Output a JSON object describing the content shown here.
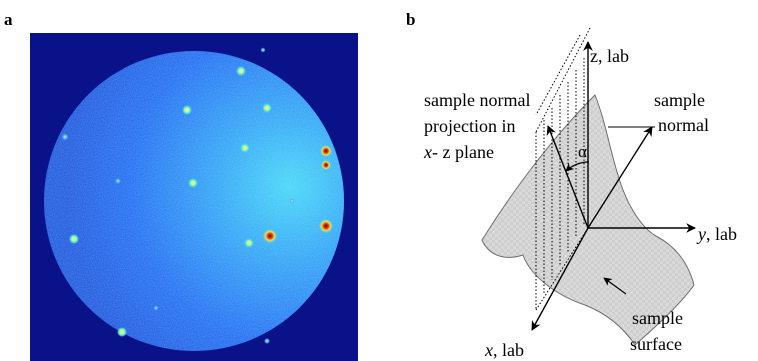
{
  "panel_a": {
    "label": "a",
    "colors": {
      "background": "#0a128a",
      "disk": "#1767f2",
      "bright": "#3ed8f8"
    }
  },
  "panel_b": {
    "label": "b",
    "axes": {
      "z": "z, lab",
      "y_italic": "y",
      "y_rest": ", lab",
      "x_italic": "x",
      "x_rest": ", lab"
    },
    "alpha": "α",
    "sample_normal": [
      "sample",
      "normal"
    ],
    "projection": {
      "line1": "sample normal",
      "line2": "projection in",
      "line3_italic": "x",
      "line3_rest": "- z plane"
    },
    "surface": [
      "sample",
      "surface"
    ]
  }
}
